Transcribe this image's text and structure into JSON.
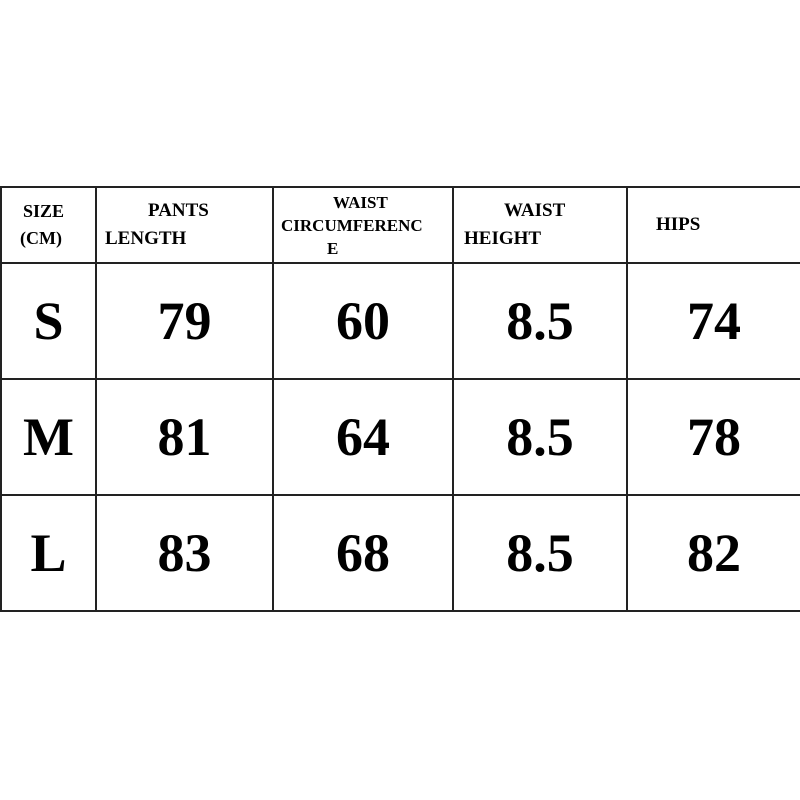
{
  "headers": [
    {
      "lines": [
        "SIZE",
        "(CM)"
      ]
    },
    {
      "lines": [
        "PANTS",
        "LENGTH"
      ]
    },
    {
      "lines": [
        "WAIST",
        "CIRCUMFERENC",
        "E"
      ]
    },
    {
      "lines": [
        "WAIST",
        "HEIGHT"
      ]
    },
    {
      "lines": [
        "HIPS"
      ]
    }
  ],
  "rows": [
    [
      "S",
      "79",
      "60",
      "8.5",
      "74"
    ],
    [
      "M",
      "81",
      "64",
      "8.5",
      "78"
    ],
    [
      "L",
      "83",
      "68",
      "8.5",
      "82"
    ]
  ]
}
